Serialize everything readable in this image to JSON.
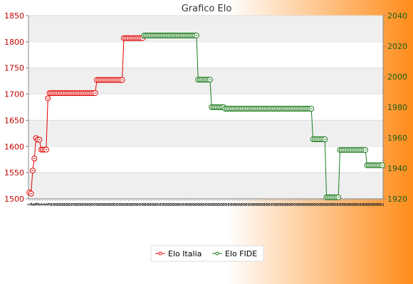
{
  "chart_data": {
    "type": "line",
    "title": "Grafico Elo",
    "background": {
      "gradient_from": "#ffffff",
      "gradient_to": "#ff8c1a"
    },
    "y_left": {
      "min": 1500,
      "max": 1850,
      "ticks": [
        1500,
        1550,
        1600,
        1650,
        1700,
        1750,
        1800,
        1850
      ],
      "color": "#c00000"
    },
    "y_right": {
      "min": 1920,
      "max": 2040,
      "ticks": [
        1920,
        1940,
        1960,
        1980,
        2000,
        2020,
        2040
      ],
      "color": "#1a5c1a"
    },
    "x_tick_labels": [
      "1",
      "2",
      "1",
      "3",
      "1",
      "1",
      "1",
      "1",
      "2",
      "2",
      "2",
      "2",
      "2",
      "2",
      "2",
      "2",
      "2",
      "2",
      "2",
      "2",
      "2",
      "2",
      "2",
      "2",
      "2",
      "2",
      "2",
      "2",
      "2",
      "2",
      "2",
      "2",
      "2",
      "2",
      "2",
      "2",
      "2",
      "2",
      "2",
      "2",
      "2",
      "2",
      "2",
      "2",
      "2",
      "2",
      "2",
      "2",
      "2",
      "2",
      "2",
      "2",
      "2",
      "2",
      "2",
      "2",
      "2",
      "2",
      "2",
      "2",
      "2",
      "2",
      "2",
      "2",
      "2",
      "2",
      "2",
      "2",
      "2",
      "2",
      "2",
      "2",
      "2",
      "2",
      "2",
      "2",
      "2",
      "2",
      "2",
      "2",
      "2",
      "2",
      "2",
      "2",
      "2",
      "2",
      "2",
      "2",
      "2",
      "2",
      "2",
      "2",
      "2",
      "2",
      "2",
      "2",
      "2",
      "2",
      "2",
      "2",
      "2",
      "2",
      "2",
      "2",
      "2",
      "2",
      "2",
      "2",
      "2",
      "2",
      "2",
      "2",
      "2",
      "2",
      "2",
      "2",
      "2",
      "2",
      "2",
      "2",
      "2",
      "2",
      "2",
      "2",
      "2",
      "2",
      "2",
      "2",
      "2",
      "2",
      "2",
      "2",
      "2",
      "2",
      "2",
      "2",
      "2",
      "2",
      "2",
      "2"
    ],
    "series": [
      {
        "name": "Elo Italia",
        "axis": "left",
        "color": "#e00000",
        "points": [
          {
            "x": 0,
            "y": 1512
          },
          {
            "x": 1,
            "y": 1510
          },
          {
            "x": 2,
            "y": 1554
          },
          {
            "x": 3,
            "y": 1577
          },
          {
            "x": 4,
            "y": 1616
          },
          {
            "x": 5,
            "y": 1613
          },
          {
            "x": 6,
            "y": 1613
          },
          {
            "x": 7,
            "y": 1594
          },
          {
            "x": 8,
            "y": 1594
          },
          {
            "x": 9,
            "y": 1594
          },
          {
            "x": 10,
            "y": 1594
          },
          {
            "x": 11,
            "y": 1692
          },
          {
            "x": 12,
            "y": 1702
          },
          {
            "x": 13,
            "y": 1702
          },
          {
            "x": 14,
            "y": 1702
          },
          {
            "x": 15,
            "y": 1702
          },
          {
            "x": 16,
            "y": 1702
          },
          {
            "x": 17,
            "y": 1702
          },
          {
            "x": 18,
            "y": 1702
          },
          {
            "x": 19,
            "y": 1702
          },
          {
            "x": 20,
            "y": 1702
          },
          {
            "x": 21,
            "y": 1702
          },
          {
            "x": 22,
            "y": 1702
          },
          {
            "x": 23,
            "y": 1702
          },
          {
            "x": 24,
            "y": 1702
          },
          {
            "x": 25,
            "y": 1702
          },
          {
            "x": 26,
            "y": 1702
          },
          {
            "x": 27,
            "y": 1702
          },
          {
            "x": 28,
            "y": 1702
          },
          {
            "x": 29,
            "y": 1702
          },
          {
            "x": 30,
            "y": 1702
          },
          {
            "x": 31,
            "y": 1702
          },
          {
            "x": 32,
            "y": 1702
          },
          {
            "x": 33,
            "y": 1702
          },
          {
            "x": 34,
            "y": 1702
          },
          {
            "x": 35,
            "y": 1702
          },
          {
            "x": 36,
            "y": 1702
          },
          {
            "x": 37,
            "y": 1702
          },
          {
            "x": 38,
            "y": 1702
          },
          {
            "x": 39,
            "y": 1702
          },
          {
            "x": 40,
            "y": 1727
          },
          {
            "x": 41,
            "y": 1727
          },
          {
            "x": 42,
            "y": 1727
          },
          {
            "x": 43,
            "y": 1727
          },
          {
            "x": 44,
            "y": 1727
          },
          {
            "x": 45,
            "y": 1727
          },
          {
            "x": 46,
            "y": 1727
          },
          {
            "x": 47,
            "y": 1727
          },
          {
            "x": 48,
            "y": 1727
          },
          {
            "x": 49,
            "y": 1727
          },
          {
            "x": 50,
            "y": 1727
          },
          {
            "x": 51,
            "y": 1727
          },
          {
            "x": 52,
            "y": 1727
          },
          {
            "x": 53,
            "y": 1727
          },
          {
            "x": 54,
            "y": 1727
          },
          {
            "x": 55,
            "y": 1727
          },
          {
            "x": 56,
            "y": 1807
          },
          {
            "x": 57,
            "y": 1807
          },
          {
            "x": 58,
            "y": 1807
          },
          {
            "x": 59,
            "y": 1807
          },
          {
            "x": 60,
            "y": 1807
          },
          {
            "x": 61,
            "y": 1807
          },
          {
            "x": 62,
            "y": 1807
          },
          {
            "x": 63,
            "y": 1807
          },
          {
            "x": 64,
            "y": 1807
          },
          {
            "x": 65,
            "y": 1807
          },
          {
            "x": 66,
            "y": 1807
          },
          {
            "x": 67,
            "y": 1807
          }
        ]
      },
      {
        "name": "Elo FIDE",
        "axis": "right",
        "color": "#1a7a1a",
        "points": [
          {
            "x": 68,
            "y": 2027
          },
          {
            "x": 69,
            "y": 2027
          },
          {
            "x": 70,
            "y": 2027
          },
          {
            "x": 71,
            "y": 2027
          },
          {
            "x": 72,
            "y": 2027
          },
          {
            "x": 73,
            "y": 2027
          },
          {
            "x": 74,
            "y": 2027
          },
          {
            "x": 75,
            "y": 2027
          },
          {
            "x": 76,
            "y": 2027
          },
          {
            "x": 77,
            "y": 2027
          },
          {
            "x": 78,
            "y": 2027
          },
          {
            "x": 79,
            "y": 2027
          },
          {
            "x": 80,
            "y": 2027
          },
          {
            "x": 81,
            "y": 2027
          },
          {
            "x": 82,
            "y": 2027
          },
          {
            "x": 83,
            "y": 2027
          },
          {
            "x": 84,
            "y": 2027
          },
          {
            "x": 85,
            "y": 2027
          },
          {
            "x": 86,
            "y": 2027
          },
          {
            "x": 87,
            "y": 2027
          },
          {
            "x": 88,
            "y": 2027
          },
          {
            "x": 89,
            "y": 2027
          },
          {
            "x": 90,
            "y": 2027
          },
          {
            "x": 91,
            "y": 2027
          },
          {
            "x": 92,
            "y": 2027
          },
          {
            "x": 93,
            "y": 2027
          },
          {
            "x": 94,
            "y": 2027
          },
          {
            "x": 95,
            "y": 2027
          },
          {
            "x": 96,
            "y": 2027
          },
          {
            "x": 97,
            "y": 2027
          },
          {
            "x": 98,
            "y": 2027
          },
          {
            "x": 99,
            "y": 2027
          },
          {
            "x": 100,
            "y": 1998
          },
          {
            "x": 101,
            "y": 1998
          },
          {
            "x": 102,
            "y": 1998
          },
          {
            "x": 103,
            "y": 1998
          },
          {
            "x": 104,
            "y": 1998
          },
          {
            "x": 105,
            "y": 1998
          },
          {
            "x": 106,
            "y": 1998
          },
          {
            "x": 107,
            "y": 1998
          },
          {
            "x": 108,
            "y": 1980
          },
          {
            "x": 109,
            "y": 1980
          },
          {
            "x": 110,
            "y": 1980
          },
          {
            "x": 111,
            "y": 1980
          },
          {
            "x": 112,
            "y": 1980
          },
          {
            "x": 113,
            "y": 1980
          },
          {
            "x": 114,
            "y": 1980
          },
          {
            "x": 115,
            "y": 1980
          },
          {
            "x": 116,
            "y": 1979
          },
          {
            "x": 117,
            "y": 1979
          },
          {
            "x": 118,
            "y": 1979
          },
          {
            "x": 119,
            "y": 1979
          },
          {
            "x": 120,
            "y": 1979
          },
          {
            "x": 121,
            "y": 1979
          },
          {
            "x": 122,
            "y": 1979
          },
          {
            "x": 123,
            "y": 1979
          },
          {
            "x": 124,
            "y": 1979
          },
          {
            "x": 125,
            "y": 1979
          },
          {
            "x": 126,
            "y": 1979
          },
          {
            "x": 127,
            "y": 1979
          },
          {
            "x": 128,
            "y": 1979
          },
          {
            "x": 129,
            "y": 1979
          },
          {
            "x": 130,
            "y": 1979
          },
          {
            "x": 131,
            "y": 1979
          },
          {
            "x": 132,
            "y": 1979
          },
          {
            "x": 133,
            "y": 1979
          },
          {
            "x": 134,
            "y": 1979
          },
          {
            "x": 135,
            "y": 1979
          },
          {
            "x": 136,
            "y": 1979
          },
          {
            "x": 137,
            "y": 1979
          },
          {
            "x": 138,
            "y": 1979
          },
          {
            "x": 139,
            "y": 1979
          },
          {
            "x": 140,
            "y": 1979
          },
          {
            "x": 141,
            "y": 1979
          },
          {
            "x": 142,
            "y": 1979
          },
          {
            "x": 143,
            "y": 1979
          },
          {
            "x": 144,
            "y": 1979
          },
          {
            "x": 145,
            "y": 1979
          },
          {
            "x": 146,
            "y": 1979
          },
          {
            "x": 147,
            "y": 1979
          },
          {
            "x": 148,
            "y": 1979
          },
          {
            "x": 149,
            "y": 1979
          },
          {
            "x": 150,
            "y": 1979
          },
          {
            "x": 151,
            "y": 1979
          },
          {
            "x": 152,
            "y": 1979
          },
          {
            "x": 153,
            "y": 1979
          },
          {
            "x": 154,
            "y": 1979
          },
          {
            "x": 155,
            "y": 1979
          },
          {
            "x": 156,
            "y": 1979
          },
          {
            "x": 157,
            "y": 1979
          },
          {
            "x": 158,
            "y": 1979
          },
          {
            "x": 159,
            "y": 1979
          },
          {
            "x": 160,
            "y": 1979
          },
          {
            "x": 161,
            "y": 1979
          },
          {
            "x": 162,
            "y": 1979
          },
          {
            "x": 163,
            "y": 1979
          },
          {
            "x": 164,
            "y": 1979
          },
          {
            "x": 165,
            "y": 1979
          },
          {
            "x": 166,
            "y": 1979
          },
          {
            "x": 167,
            "y": 1979
          },
          {
            "x": 168,
            "y": 1959
          },
          {
            "x": 169,
            "y": 1959
          },
          {
            "x": 170,
            "y": 1959
          },
          {
            "x": 171,
            "y": 1959
          },
          {
            "x": 172,
            "y": 1959
          },
          {
            "x": 173,
            "y": 1959
          },
          {
            "x": 174,
            "y": 1959
          },
          {
            "x": 175,
            "y": 1959
          },
          {
            "x": 176,
            "y": 1921
          },
          {
            "x": 177,
            "y": 1921
          },
          {
            "x": 178,
            "y": 1921
          },
          {
            "x": 179,
            "y": 1921
          },
          {
            "x": 180,
            "y": 1921
          },
          {
            "x": 181,
            "y": 1921
          },
          {
            "x": 182,
            "y": 1921
          },
          {
            "x": 183,
            "y": 1921
          },
          {
            "x": 184,
            "y": 1952
          },
          {
            "x": 185,
            "y": 1952
          },
          {
            "x": 186,
            "y": 1952
          },
          {
            "x": 187,
            "y": 1952
          },
          {
            "x": 188,
            "y": 1952
          },
          {
            "x": 189,
            "y": 1952
          },
          {
            "x": 190,
            "y": 1952
          },
          {
            "x": 191,
            "y": 1952
          },
          {
            "x": 192,
            "y": 1952
          },
          {
            "x": 193,
            "y": 1952
          },
          {
            "x": 194,
            "y": 1952
          },
          {
            "x": 195,
            "y": 1952
          },
          {
            "x": 196,
            "y": 1952
          },
          {
            "x": 197,
            "y": 1952
          },
          {
            "x": 198,
            "y": 1952
          },
          {
            "x": 199,
            "y": 1952
          },
          {
            "x": 200,
            "y": 1942
          },
          {
            "x": 201,
            "y": 1942
          },
          {
            "x": 202,
            "y": 1942
          },
          {
            "x": 203,
            "y": 1942
          },
          {
            "x": 204,
            "y": 1942
          },
          {
            "x": 205,
            "y": 1942
          },
          {
            "x": 206,
            "y": 1942
          },
          {
            "x": 207,
            "y": 1942
          },
          {
            "x": 208,
            "y": 1942
          },
          {
            "x": 209,
            "y": 1942
          }
        ]
      }
    ],
    "legend": {
      "position": "bottom",
      "entries": [
        "Elo Italia",
        "Elo FIDE"
      ]
    },
    "grid": true
  }
}
